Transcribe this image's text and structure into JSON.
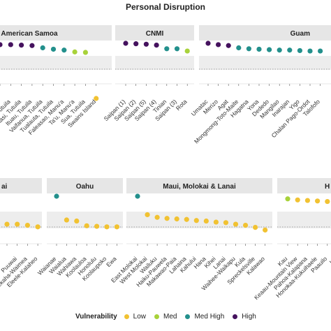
{
  "chart_data": {
    "type": "scatter",
    "title": "Personal Disruption",
    "legend": {
      "title": "Vulnerability",
      "placement": "bottom",
      "entries": [
        {
          "label": "Low",
          "color": "#f1c232"
        },
        {
          "label": "Med",
          "color": "#a8d23a"
        },
        {
          "label": "Med High",
          "color": "#23908c"
        },
        {
          "label": "High",
          "color": "#45125e"
        }
      ]
    },
    "panels": [
      {
        "name": "American Samoa",
        "categories": [
          "",
          "Matatula, Tutuila",
          "Ma'oputasi, Tutuila",
          "Ituau, Tutuila",
          "Vaifanua, Tutuila",
          "Tualauta, Tutuila",
          "Faleasao, Manu'a",
          "Ta'u, Manu'a",
          "Sua, Tutuila",
          "Swains Island"
        ],
        "values": [
          0.97,
          0.97,
          0.96,
          0.95,
          0.9,
          0.87,
          0.85,
          0.81,
          0.8,
          0.06
        ],
        "vulnerability": [
          "High",
          "High",
          "High",
          "High",
          "Med High",
          "Med High",
          "Med High",
          "Med",
          "Med",
          "Low"
        ]
      },
      {
        "name": "CNMI",
        "categories": [
          "Saipan (1)",
          "Saipan (2)",
          "Saipan (5)",
          "Saipan (4)",
          "Tinian",
          "Saipan (3)",
          "Rota"
        ],
        "values": [
          1.0,
          0.99,
          0.98,
          0.96,
          0.88,
          0.88,
          0.83
        ],
        "vulnerability": [
          "High",
          "High",
          "High",
          "High",
          "Med High",
          "Med High",
          "Med"
        ]
      },
      {
        "name": "Guam",
        "categories": [
          "Umatac",
          "Merizo",
          "Agat",
          "Mongmong-Toto-Maite",
          "Hagatna",
          "Yona",
          "Dededo",
          "Mangilao",
          "Inarajan",
          "Yigo",
          "Chalan Pago-Ordot",
          "Talofofo"
        ],
        "values": [
          1.0,
          0.97,
          0.95,
          0.9,
          0.88,
          0.87,
          0.86,
          0.85,
          0.85,
          0.84,
          0.83,
          0.83
        ],
        "vulnerability": [
          "High",
          "High",
          "High",
          "Med High",
          "Med High",
          "Med High",
          "Med High",
          "Med High",
          "Med High",
          "Med High",
          "Med High",
          "Med High"
        ]
      },
      {
        "name": "",
        "title_fragment": "ai",
        "categories": [
          "",
          "Puuwai",
          "Kekaha-Waimea",
          "Eleele-Kalaheo"
        ],
        "values": [
          0.47,
          0.47,
          0.45,
          0.42
        ],
        "vulnerability": [
          "Low",
          "Low",
          "Low",
          "Low"
        ]
      },
      {
        "name": "Oahu",
        "categories": [
          "Waianae",
          "Waialua",
          "Wahiawa",
          "Koolauloa",
          "Honolulu",
          "Koolaupoko",
          "Ewa"
        ],
        "values": [
          1.0,
          0.55,
          0.53,
          0.44,
          0.43,
          0.42,
          0.42
        ],
        "vulnerability": [
          "Med High",
          "Low",
          "Low",
          "Low",
          "Low",
          "Low",
          "Low"
        ]
      },
      {
        "name": "Maui, Molokai & Lanai",
        "categories": [
          "East Molokai",
          "West Molokai",
          "Wailuku",
          "Haiku-Pauwela",
          "Makawao-Paia",
          "Lahaina",
          "Kahului",
          "Hana",
          "Kihei",
          "Lanai",
          "Waihee-Waikapu",
          "Kula",
          "Spreckelsville",
          "Kalawao"
        ],
        "values": [
          1.0,
          0.65,
          0.6,
          0.58,
          0.57,
          0.56,
          0.54,
          0.53,
          0.51,
          0.5,
          0.47,
          0.45,
          0.41,
          0.36
        ],
        "vulnerability": [
          "Med High",
          "Low",
          "Low",
          "Low",
          "Low",
          "Low",
          "Low",
          "Low",
          "Low",
          "Low",
          "Low",
          "Low",
          "Low",
          "Low"
        ]
      },
      {
        "name": "",
        "title_fragment": "H",
        "categories": [
          "Kau",
          "Keaau-Mountain View",
          "Pahoa-Kalapana",
          "Honokaa-Kukuihaele",
          "Paauilo",
          "Ho"
        ],
        "values": [
          0.95,
          0.93,
          0.92,
          0.91,
          0.9,
          0.88
        ],
        "vulnerability": [
          "Med",
          "Low",
          "Low",
          "Low",
          "Low",
          "Low"
        ]
      }
    ]
  }
}
